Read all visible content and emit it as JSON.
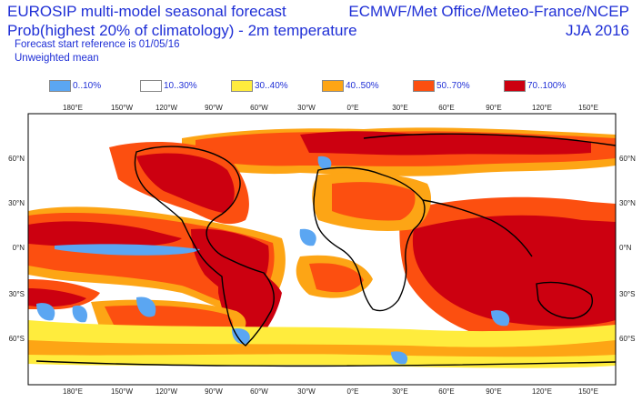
{
  "header": {
    "title_line1": "EUROSIP multi-model seasonal forecast",
    "title_line2": "Prob(highest 20% of climatology) - 2m temperature",
    "forecast_ref": "Forecast start reference is 01/05/16",
    "weighting": "Unweighted mean",
    "source": "ECMWF/Met Office/Meteo-France/NCEP",
    "season": "JJA 2016"
  },
  "legend": [
    {
      "label": "0..10%",
      "color": "#5ba6f2"
    },
    {
      "label": "10..30%",
      "color": "#ffffff"
    },
    {
      "label": "30..40%",
      "color": "#ffec3d"
    },
    {
      "label": "40..50%",
      "color": "#fda515"
    },
    {
      "label": "50..70%",
      "color": "#fc4f10"
    },
    {
      "label": "70..100%",
      "color": "#cc0010"
    }
  ],
  "map": {
    "top_lon_labels": [
      "180°E",
      "150°W",
      "120°W",
      "90°W",
      "60°W",
      "30°W",
      "0°E",
      "30°E",
      "60°E",
      "90°E",
      "120°E",
      "150°E"
    ],
    "bottom_lon_labels": [
      "180°E",
      "150°W",
      "120°W",
      "90°W",
      "60°W",
      "30°W",
      "0°E",
      "30°E",
      "60°E",
      "90°E",
      "120°E",
      "150°E"
    ],
    "lat_labels": [
      "60°N",
      "30°N",
      "0°N",
      "30°S",
      "60°S"
    ]
  }
}
